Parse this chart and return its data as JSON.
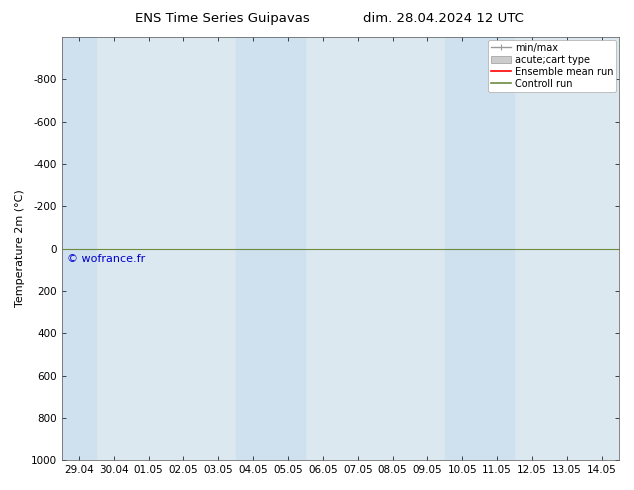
{
  "title_left": "ENS Time Series Guipavas",
  "title_right": "dim. 28.04.2024 12 UTC",
  "ylabel": "Temperature 2m (°C)",
  "ylim": [
    1000,
    -1000
  ],
  "yticks": [
    -800,
    -600,
    -400,
    -200,
    0,
    200,
    400,
    600,
    800,
    1000
  ],
  "xlabels": [
    "29.04",
    "30.04",
    "01.05",
    "02.05",
    "03.05",
    "04.05",
    "05.05",
    "06.05",
    "07.05",
    "08.05",
    "09.05",
    "10.05",
    "11.05",
    "12.05",
    "13.05",
    "14.05"
  ],
  "background_color": "#ffffff",
  "plot_bg_color": "#dce8f0",
  "band_color": "#cfe0ee",
  "shaded_cols": [
    0,
    5,
    6,
    11,
    12
  ],
  "green_line_y": 0,
  "green_line_color": "#6e8b3d",
  "watermark": "© wofrance.fr",
  "watermark_color": "#0000cc",
  "legend_labels": [
    "min/max",
    "acute;cart type",
    "Ensemble mean run",
    "Controll run"
  ],
  "legend_line_color": "#999999",
  "legend_patch_color": "#cccccc",
  "legend_red": "#ff0000",
  "legend_green": "#6e8b3d",
  "title_fontsize": 9.5,
  "axis_fontsize": 8,
  "tick_fontsize": 7.5,
  "legend_fontsize": 7
}
